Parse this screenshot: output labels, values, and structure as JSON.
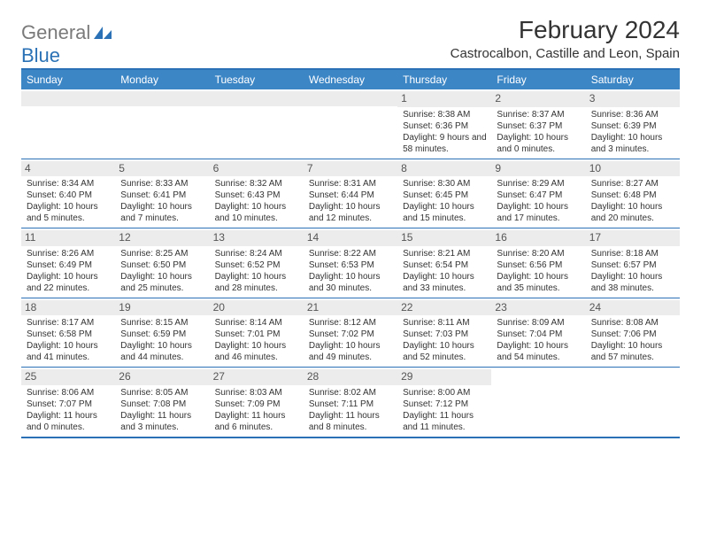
{
  "logo": {
    "general": "General",
    "blue": "Blue"
  },
  "title": "February 2024",
  "location": "Castrocalbon, Castille and Leon, Spain",
  "colors": {
    "header_bg": "#3d86c6",
    "border": "#2a72b5",
    "daynum_bg": "#ececec",
    "text": "#333333",
    "logo_gray": "#7a7a7a",
    "logo_blue": "#2a72b5"
  },
  "weekdays": [
    "Sunday",
    "Monday",
    "Tuesday",
    "Wednesday",
    "Thursday",
    "Friday",
    "Saturday"
  ],
  "weeks": [
    [
      null,
      null,
      null,
      null,
      {
        "n": "1",
        "sunrise": "8:38 AM",
        "sunset": "6:36 PM",
        "daylight": "9 hours and 58 minutes."
      },
      {
        "n": "2",
        "sunrise": "8:37 AM",
        "sunset": "6:37 PM",
        "daylight": "10 hours and 0 minutes."
      },
      {
        "n": "3",
        "sunrise": "8:36 AM",
        "sunset": "6:39 PM",
        "daylight": "10 hours and 3 minutes."
      }
    ],
    [
      {
        "n": "4",
        "sunrise": "8:34 AM",
        "sunset": "6:40 PM",
        "daylight": "10 hours and 5 minutes."
      },
      {
        "n": "5",
        "sunrise": "8:33 AM",
        "sunset": "6:41 PM",
        "daylight": "10 hours and 7 minutes."
      },
      {
        "n": "6",
        "sunrise": "8:32 AM",
        "sunset": "6:43 PM",
        "daylight": "10 hours and 10 minutes."
      },
      {
        "n": "7",
        "sunrise": "8:31 AM",
        "sunset": "6:44 PM",
        "daylight": "10 hours and 12 minutes."
      },
      {
        "n": "8",
        "sunrise": "8:30 AM",
        "sunset": "6:45 PM",
        "daylight": "10 hours and 15 minutes."
      },
      {
        "n": "9",
        "sunrise": "8:29 AM",
        "sunset": "6:47 PM",
        "daylight": "10 hours and 17 minutes."
      },
      {
        "n": "10",
        "sunrise": "8:27 AM",
        "sunset": "6:48 PM",
        "daylight": "10 hours and 20 minutes."
      }
    ],
    [
      {
        "n": "11",
        "sunrise": "8:26 AM",
        "sunset": "6:49 PM",
        "daylight": "10 hours and 22 minutes."
      },
      {
        "n": "12",
        "sunrise": "8:25 AM",
        "sunset": "6:50 PM",
        "daylight": "10 hours and 25 minutes."
      },
      {
        "n": "13",
        "sunrise": "8:24 AM",
        "sunset": "6:52 PM",
        "daylight": "10 hours and 28 minutes."
      },
      {
        "n": "14",
        "sunrise": "8:22 AM",
        "sunset": "6:53 PM",
        "daylight": "10 hours and 30 minutes."
      },
      {
        "n": "15",
        "sunrise": "8:21 AM",
        "sunset": "6:54 PM",
        "daylight": "10 hours and 33 minutes."
      },
      {
        "n": "16",
        "sunrise": "8:20 AM",
        "sunset": "6:56 PM",
        "daylight": "10 hours and 35 minutes."
      },
      {
        "n": "17",
        "sunrise": "8:18 AM",
        "sunset": "6:57 PM",
        "daylight": "10 hours and 38 minutes."
      }
    ],
    [
      {
        "n": "18",
        "sunrise": "8:17 AM",
        "sunset": "6:58 PM",
        "daylight": "10 hours and 41 minutes."
      },
      {
        "n": "19",
        "sunrise": "8:15 AM",
        "sunset": "6:59 PM",
        "daylight": "10 hours and 44 minutes."
      },
      {
        "n": "20",
        "sunrise": "8:14 AM",
        "sunset": "7:01 PM",
        "daylight": "10 hours and 46 minutes."
      },
      {
        "n": "21",
        "sunrise": "8:12 AM",
        "sunset": "7:02 PM",
        "daylight": "10 hours and 49 minutes."
      },
      {
        "n": "22",
        "sunrise": "8:11 AM",
        "sunset": "7:03 PM",
        "daylight": "10 hours and 52 minutes."
      },
      {
        "n": "23",
        "sunrise": "8:09 AM",
        "sunset": "7:04 PM",
        "daylight": "10 hours and 54 minutes."
      },
      {
        "n": "24",
        "sunrise": "8:08 AM",
        "sunset": "7:06 PM",
        "daylight": "10 hours and 57 minutes."
      }
    ],
    [
      {
        "n": "25",
        "sunrise": "8:06 AM",
        "sunset": "7:07 PM",
        "daylight": "11 hours and 0 minutes."
      },
      {
        "n": "26",
        "sunrise": "8:05 AM",
        "sunset": "7:08 PM",
        "daylight": "11 hours and 3 minutes."
      },
      {
        "n": "27",
        "sunrise": "8:03 AM",
        "sunset": "7:09 PM",
        "daylight": "11 hours and 6 minutes."
      },
      {
        "n": "28",
        "sunrise": "8:02 AM",
        "sunset": "7:11 PM",
        "daylight": "11 hours and 8 minutes."
      },
      {
        "n": "29",
        "sunrise": "8:00 AM",
        "sunset": "7:12 PM",
        "daylight": "11 hours and 11 minutes."
      },
      null,
      null
    ]
  ]
}
